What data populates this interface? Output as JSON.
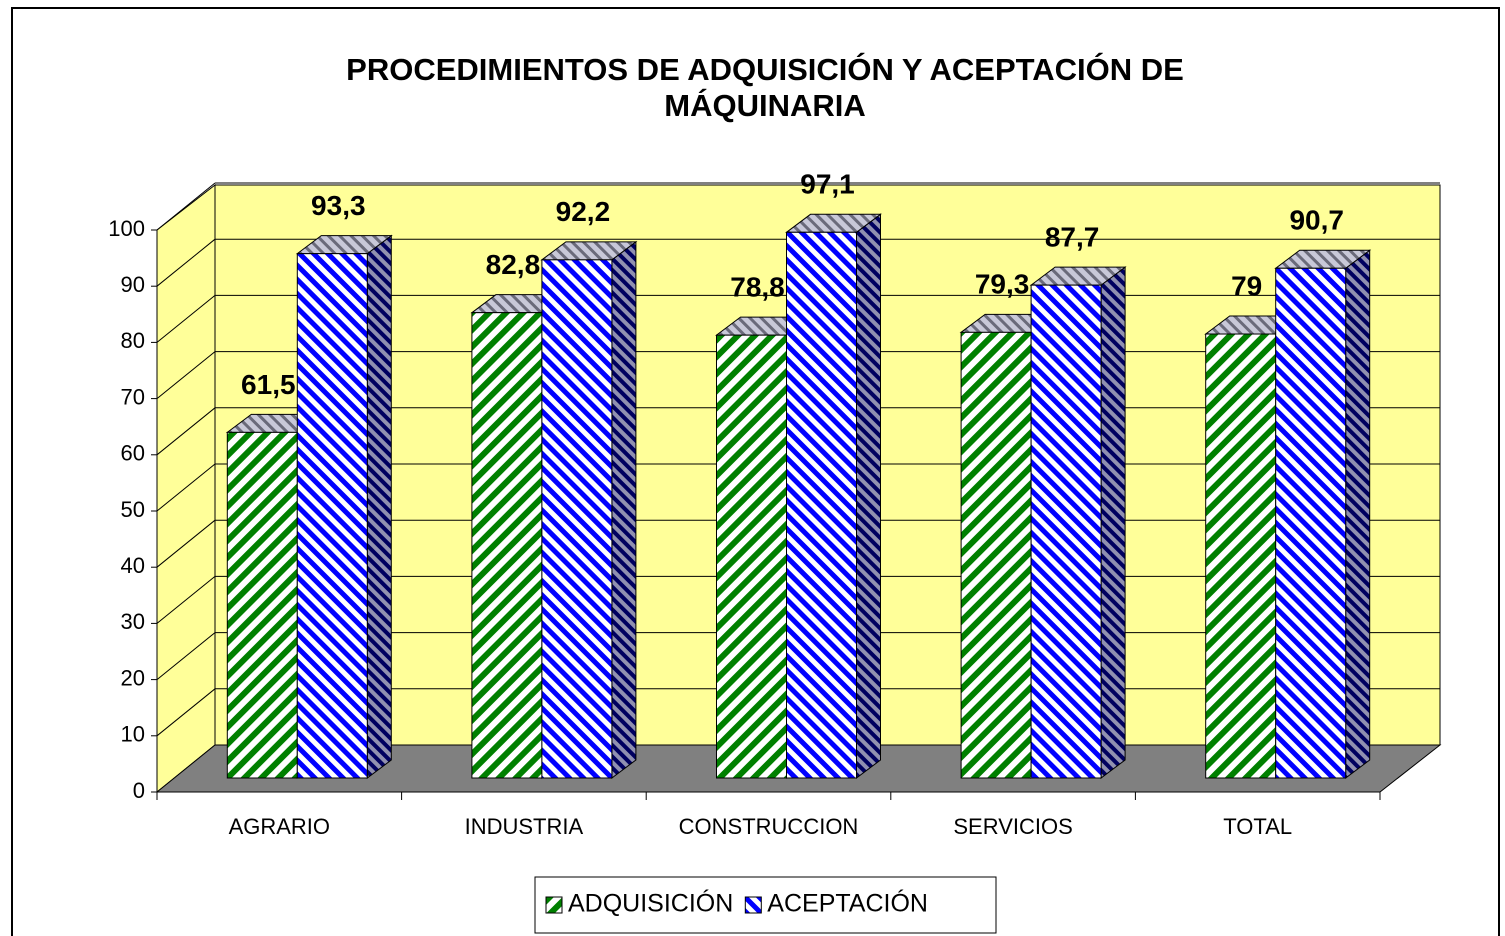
{
  "chart_data": {
    "type": "bar3d",
    "title": "PROCEDIMIENTOS DE ADQUISICIÓN Y ACEPTACIÓN DE MÁQUINARIA",
    "categories": [
      "AGRARIO",
      "INDUSTRIA",
      "CONSTRUCCION",
      "SERVICIOS",
      "TOTAL"
    ],
    "series": [
      {
        "name": "ADQUISICIÓN",
        "color": "#008000",
        "values": [
          61.5,
          82.8,
          78.8,
          79.3,
          79
        ],
        "value_labels": [
          "61,5",
          "82,8",
          "78,8",
          "79,3",
          "79"
        ]
      },
      {
        "name": "ACEPTACIÓN",
        "color": "#0000ff",
        "values": [
          93.3,
          92.2,
          97.1,
          87.7,
          90.7
        ],
        "value_labels": [
          "93,3",
          "92,2",
          "97,1",
          "87,7",
          "90,7"
        ]
      }
    ],
    "ylim": [
      0,
      100
    ],
    "yticks": [
      0,
      10,
      20,
      30,
      40,
      50,
      60,
      70,
      80,
      90,
      100
    ],
    "grid": true,
    "legend": "bottom"
  }
}
